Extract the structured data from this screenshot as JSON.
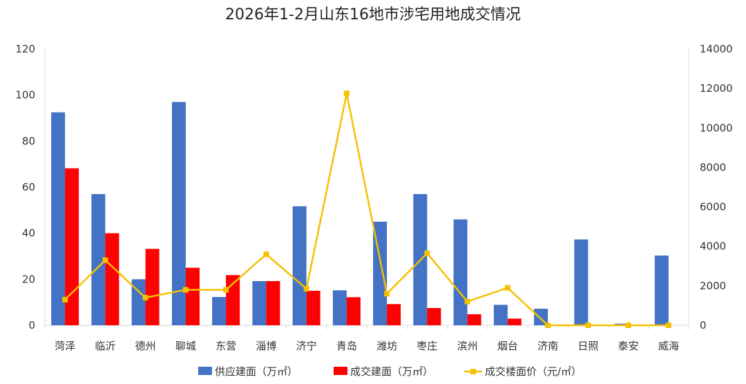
{
  "chart_data": {
    "type": "bar",
    "title": "2026年1-2月山东16地市涉宅用地成交情况",
    "categories": [
      "菏泽",
      "临沂",
      "德州",
      "聊城",
      "东营",
      "淄博",
      "济宁",
      "青岛",
      "潍坊",
      "枣庄",
      "滨州",
      "烟台",
      "济南",
      "日照",
      "泰安",
      "威海"
    ],
    "y_left": {
      "ylim": [
        0,
        120
      ],
      "ticks": [
        "0",
        "20",
        "40",
        "60",
        "80",
        "100",
        "120"
      ]
    },
    "y_right": {
      "ylim": [
        0,
        14000
      ],
      "ticks": [
        "0",
        "2000",
        "4000",
        "6000",
        "8000",
        "10000",
        "12000",
        "14000"
      ]
    },
    "series": [
      {
        "name": "供应建面（万㎡）",
        "type": "bar",
        "axis": "left",
        "color": "#4472C4",
        "values": [
          92.5,
          57.0,
          20.0,
          97.0,
          12.3,
          19.2,
          51.7,
          15.2,
          45.0,
          57.0,
          46.0,
          8.9,
          7.2,
          37.3,
          0.7,
          30.3
        ]
      },
      {
        "name": "成交建面（万㎡）",
        "type": "bar",
        "axis": "left",
        "color": "#FF0000",
        "values": [
          68.2,
          40.0,
          33.2,
          25.0,
          21.8,
          19.2,
          15.0,
          12.2,
          9.2,
          7.5,
          4.8,
          2.9,
          0,
          0,
          0,
          0
        ]
      },
      {
        "name": "成交楼面价（元/㎡）",
        "type": "line",
        "axis": "right",
        "color": "#F5C000",
        "values": [
          1300,
          3300,
          1400,
          1800,
          1800,
          3600,
          1850,
          11750,
          1600,
          3650,
          1200,
          1900,
          0,
          0,
          0,
          0
        ]
      }
    ],
    "legend_position": "bottom",
    "grid": false
  }
}
